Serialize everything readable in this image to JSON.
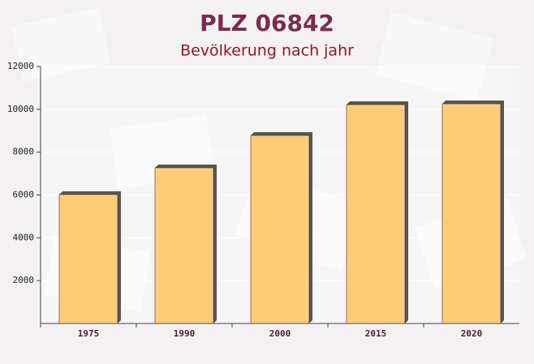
{
  "chart_data": {
    "type": "bar",
    "title": "PLZ 06842",
    "subtitle": "Bevölkerung nach jahr",
    "categories": [
      "1975",
      "1990",
      "2000",
      "2015",
      "2020"
    ],
    "values": [
      6020,
      7270,
      8780,
      10220,
      10260
    ],
    "color": "#fcc76a",
    "ylim": [
      0,
      12000
    ],
    "yticks": [
      2000,
      4000,
      6000,
      8000,
      10000,
      12000
    ],
    "grid": true
  }
}
